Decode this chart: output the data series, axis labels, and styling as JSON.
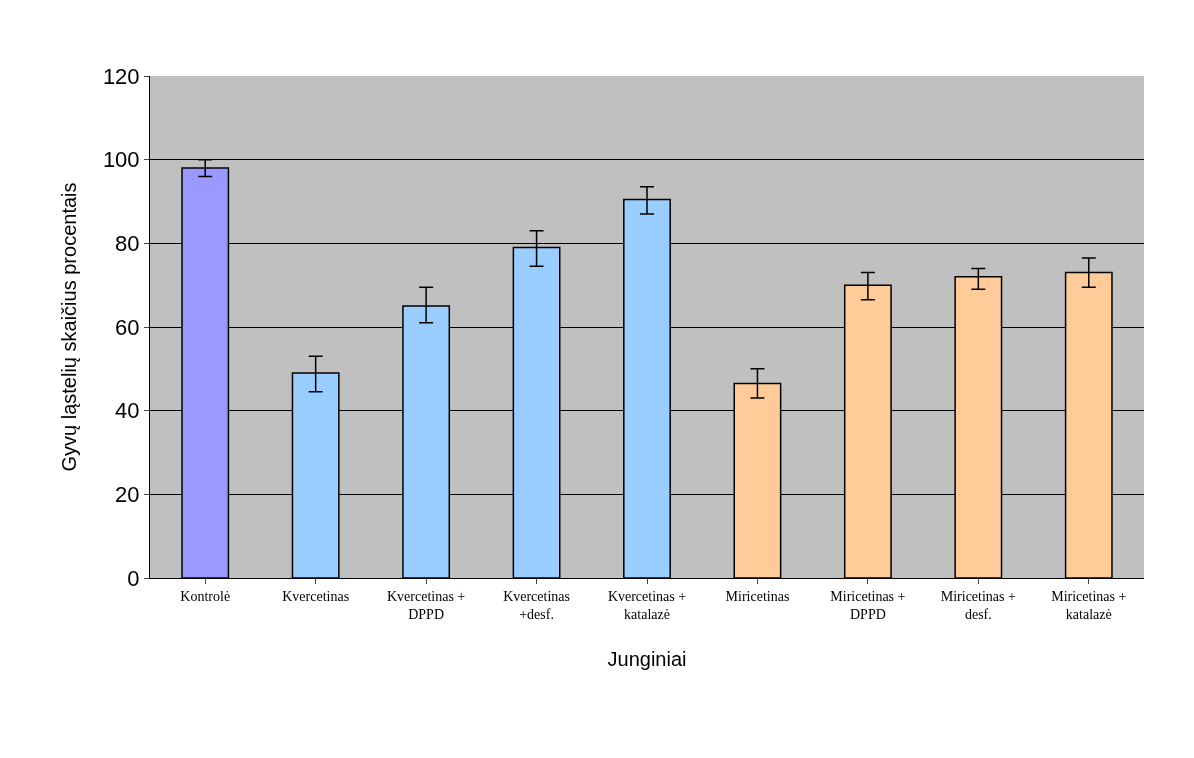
{
  "chart_data": {
    "type": "bar",
    "xlabel": "Junginiai",
    "ylabel": "Gyvų ląstelių skaičius procentais",
    "categories": [
      "Kontrolė",
      "Kvercetinas",
      "Kvercetinas + DPPD",
      "Kvercetinas +desf.",
      "Kvercetinas + katalazė",
      "Miricetinas",
      "Miricetinas + DPPD",
      "Miricetinas + desf.",
      "Miricetinas + katalazė"
    ],
    "values": [
      98,
      49,
      65,
      79,
      90.5,
      46.5,
      70,
      72,
      73
    ],
    "colors": [
      "#9999ff",
      "#99ccff",
      "#99ccff",
      "#99ccff",
      "#99ccff",
      "#ffcc99",
      "#ffcc99",
      "#ffcc99",
      "#ffcc99"
    ],
    "errors": [
      [
        96,
        100
      ],
      [
        44.5,
        53
      ],
      [
        61,
        69.5
      ],
      [
        74.5,
        83
      ],
      [
        87,
        93.5
      ],
      [
        43,
        50
      ],
      [
        66.5,
        73
      ],
      [
        69,
        74
      ],
      [
        69.5,
        76.5
      ]
    ],
    "ylim": [
      0,
      120
    ],
    "yticks": [
      0,
      20,
      40,
      60,
      80,
      100,
      120
    ],
    "grid": "y",
    "legend": false
  }
}
